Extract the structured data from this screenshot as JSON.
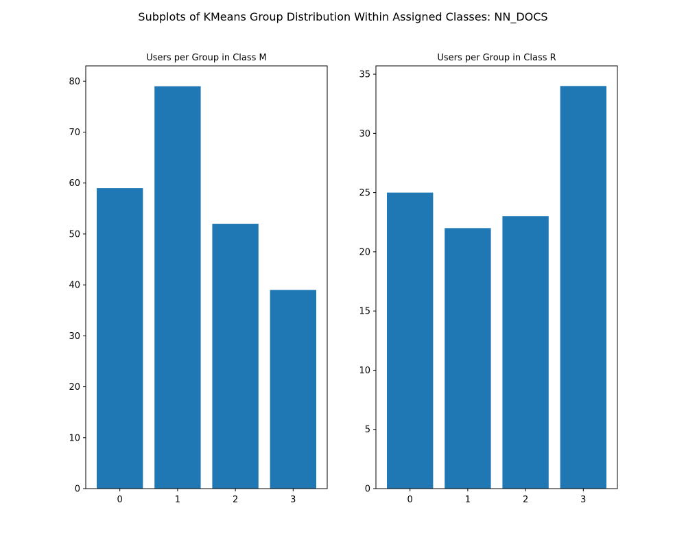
{
  "figure": {
    "suptitle": "Subplots of KMeans Group Distribution Within Assigned Classes: NN_DOCS"
  },
  "colors": {
    "bar": "#1f77b4",
    "background": "#ffffff",
    "axis": "#000000"
  },
  "chart_data": [
    {
      "type": "bar",
      "title": "Users per Group in Class M",
      "xlabel": "",
      "ylabel": "",
      "categories": [
        "0",
        "1",
        "2",
        "3"
      ],
      "values": [
        59,
        79,
        52,
        39
      ],
      "ylim": [
        0,
        83
      ],
      "yticks": [
        0,
        10,
        20,
        30,
        40,
        50,
        60,
        70,
        80
      ],
      "grid": false,
      "legend": "none"
    },
    {
      "type": "bar",
      "title": "Users per Group in Class R",
      "xlabel": "",
      "ylabel": "",
      "categories": [
        "0",
        "1",
        "2",
        "3"
      ],
      "values": [
        25,
        22,
        23,
        34
      ],
      "ylim": [
        0,
        35.7
      ],
      "yticks": [
        0,
        5,
        10,
        15,
        20,
        25,
        30,
        35
      ],
      "grid": false,
      "legend": "none"
    }
  ]
}
